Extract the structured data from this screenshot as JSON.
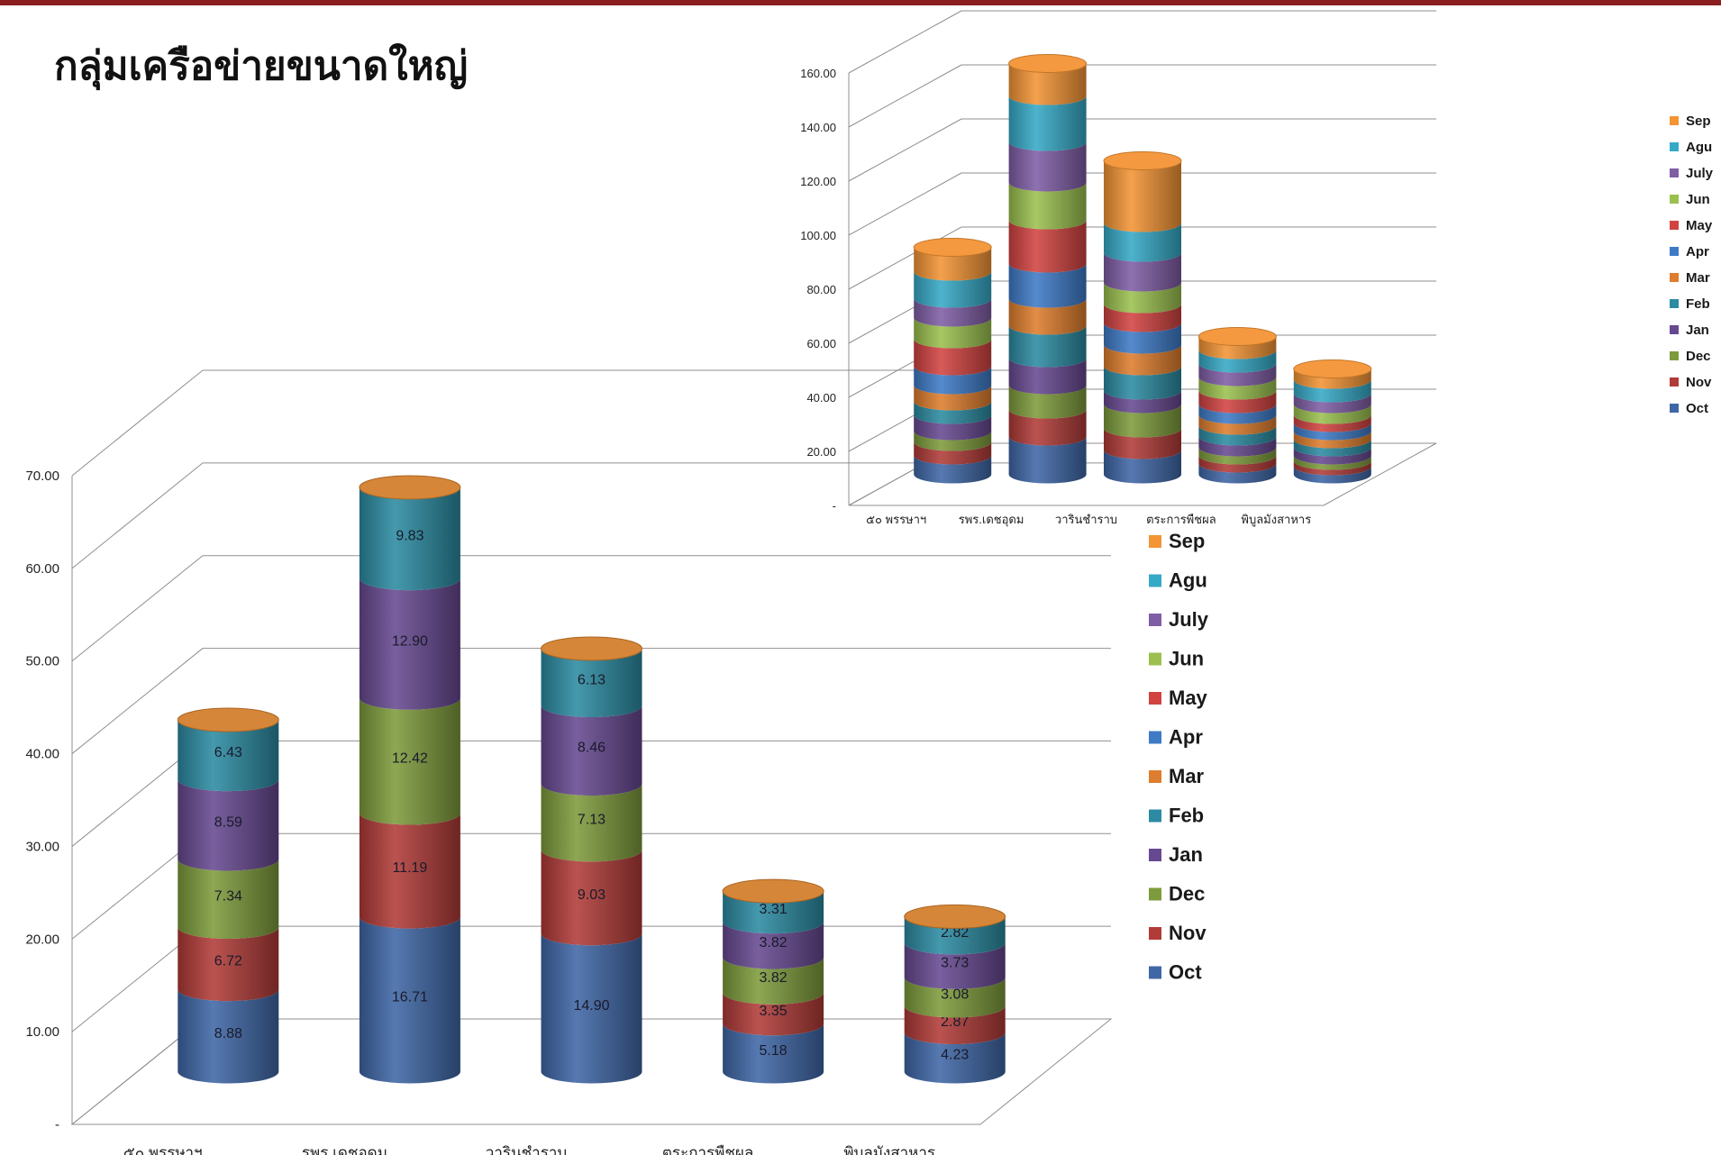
{
  "slide": {
    "title": "กลุ่มเครือข่ายขนาดใหญ่",
    "accent_color": "#8b1e1e"
  },
  "chart_data": [
    {
      "type": "bar",
      "categories": [
        "๕๐ พรรษาฯ",
        "รพร.เดชอุดม",
        "วารินชำราบ",
        "ตระการพืชผล",
        "พิบูลมังสาหาร"
      ],
      "series": [
        {
          "name": "Oct",
          "color": "#3f67a6",
          "values": [
            8.88,
            16.71,
            14.9,
            5.18,
            4.23
          ]
        },
        {
          "name": "Nov",
          "color": "#b13b38",
          "values": [
            6.72,
            11.19,
            9.03,
            3.35,
            2.87
          ]
        },
        {
          "name": "Dec",
          "color": "#7d9b3c",
          "values": [
            7.34,
            12.42,
            7.13,
            3.82,
            3.08
          ]
        },
        {
          "name": "Jan",
          "color": "#674991",
          "values": [
            8.59,
            12.9,
            8.46,
            3.82,
            3.73
          ]
        },
        {
          "name": "Feb",
          "color": "#2c8ba2",
          "values": [
            6.43,
            9.83,
            6.13,
            3.31,
            2.82
          ]
        },
        {
          "name": "Mar",
          "color": "#de7d2d",
          "values": [
            0,
            0,
            0,
            0,
            0
          ]
        },
        {
          "name": "Apr",
          "color": "#3e7ac6",
          "values": [
            0,
            0,
            0,
            0,
            0
          ]
        },
        {
          "name": "May",
          "color": "#d14341",
          "values": [
            0,
            0,
            0,
            0,
            0
          ]
        },
        {
          "name": "Jun",
          "color": "#9bc04f",
          "values": [
            0,
            0,
            0,
            0,
            0
          ]
        },
        {
          "name": "July",
          "color": "#7f5ea5",
          "values": [
            0,
            0,
            0,
            0,
            0
          ]
        },
        {
          "name": "Agu",
          "color": "#36a9c6",
          "values": [
            0,
            0,
            0,
            0,
            0
          ]
        },
        {
          "name": "Sep",
          "color": "#f39435",
          "values": [
            0,
            0,
            0,
            0,
            0
          ]
        }
      ],
      "y_ticks": [
        "-",
        "10.00",
        "20.00",
        "30.00",
        "40.00",
        "50.00",
        "60.00",
        "70.00"
      ],
      "ylim": [
        0,
        70
      ],
      "data_labels": true,
      "legend_position": "right",
      "legend_order": [
        "Sep",
        "Agu",
        "July",
        "Jun",
        "May",
        "Apr",
        "Mar",
        "Feb",
        "Jan",
        "Dec",
        "Nov",
        "Oct"
      ],
      "grid": true,
      "style": "3d-cylinder-stacked"
    },
    {
      "type": "bar",
      "categories": [
        "๕๐ พรรษาฯ",
        "รพร.เดชอุดม",
        "วารินชำราบ",
        "ตระการพืชผล",
        "พิบูลมังสาหาร"
      ],
      "series": [
        {
          "name": "Oct",
          "color": "#3f67a6",
          "values": [
            7,
            14,
            9,
            4,
            3
          ]
        },
        {
          "name": "Nov",
          "color": "#b13b38",
          "values": [
            5,
            10,
            8,
            3,
            2
          ]
        },
        {
          "name": "Dec",
          "color": "#7d9b3c",
          "values": [
            4,
            9,
            9,
            3,
            2
          ]
        },
        {
          "name": "Jan",
          "color": "#674991",
          "values": [
            6,
            10,
            5,
            4,
            3
          ]
        },
        {
          "name": "Feb",
          "color": "#2c8ba2",
          "values": [
            5,
            12,
            9,
            4,
            3
          ]
        },
        {
          "name": "Mar",
          "color": "#de7d2d",
          "values": [
            6,
            10,
            8,
            4,
            3
          ]
        },
        {
          "name": "Apr",
          "color": "#3e7ac6",
          "values": [
            7,
            13,
            8,
            4,
            3
          ]
        },
        {
          "name": "May",
          "color": "#d14341",
          "values": [
            10,
            16,
            7,
            5,
            3
          ]
        },
        {
          "name": "Jun",
          "color": "#9bc04f",
          "values": [
            8,
            14,
            8,
            5,
            4
          ]
        },
        {
          "name": "July",
          "color": "#7f5ea5",
          "values": [
            7,
            15,
            11,
            5,
            4
          ]
        },
        {
          "name": "Agu",
          "color": "#36a9c6",
          "values": [
            10,
            17,
            11,
            5,
            5
          ]
        },
        {
          "name": "Sep",
          "color": "#f39435",
          "values": [
            9,
            12,
            23,
            5,
            4
          ]
        }
      ],
      "y_ticks": [
        "-",
        "20.00",
        "40.00",
        "60.00",
        "80.00",
        "100.00",
        "120.00",
        "140.00",
        "160.00"
      ],
      "ylim": [
        0,
        160
      ],
      "data_labels": false,
      "legend_position": "right",
      "legend_order": [
        "Sep",
        "Agu",
        "July",
        "Jun",
        "May",
        "Apr",
        "Mar",
        "Feb",
        "Jan",
        "Dec",
        "Nov",
        "Oct"
      ],
      "grid": true,
      "style": "3d-cylinder-stacked"
    }
  ]
}
